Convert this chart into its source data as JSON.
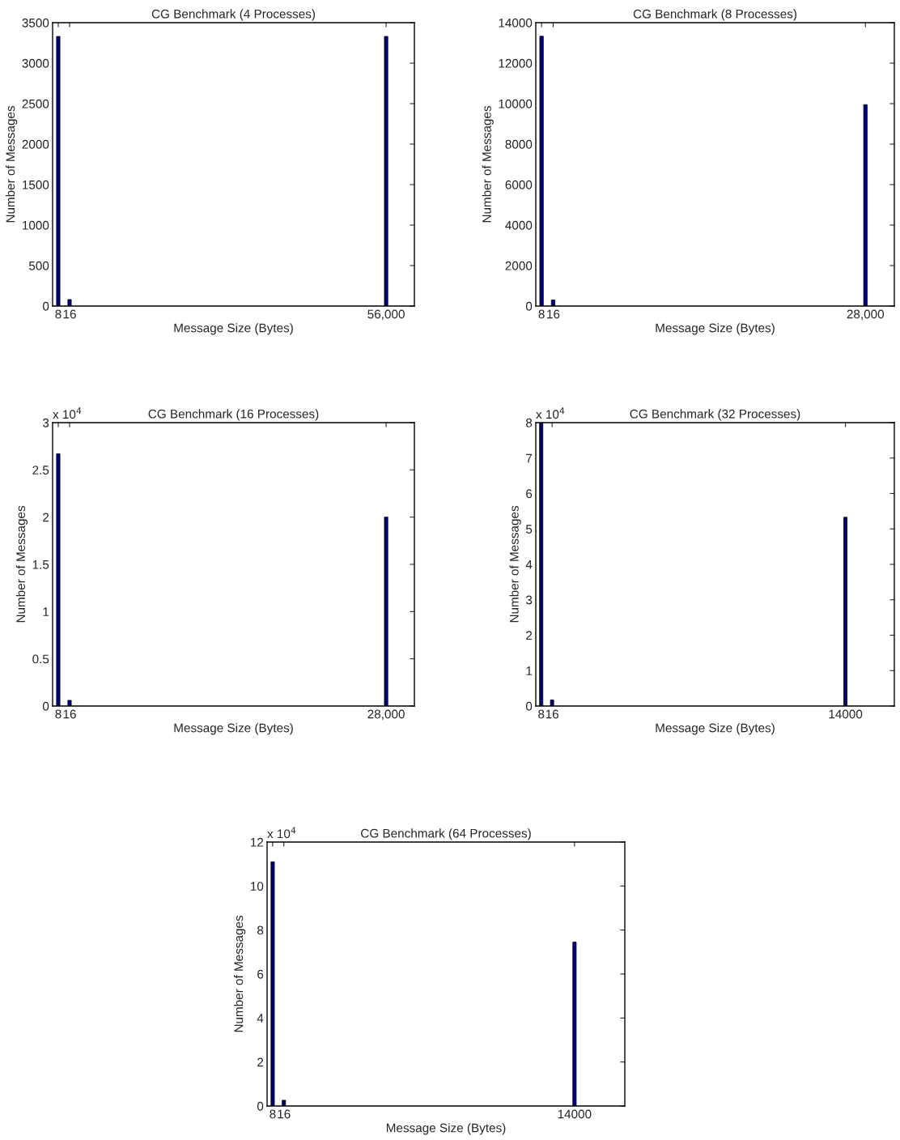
{
  "chart_data": [
    {
      "type": "bar",
      "title": "CG Benchmark (4 Processes)",
      "xlabel": "Message Size (Bytes)",
      "ylabel": "Number of Messages",
      "categories": [
        "8",
        "16",
        null,
        null,
        null,
        null,
        null,
        null,
        null,
        null,
        null,
        null,
        null,
        null,
        null,
        null,
        null,
        null,
        null,
        null,
        null,
        null,
        null,
        null,
        null,
        null,
        null,
        null,
        null,
        "56,000",
        null,
        null
      ],
      "values": [
        3330,
        80,
        null,
        null,
        null,
        null,
        null,
        null,
        null,
        null,
        null,
        null,
        null,
        null,
        null,
        null,
        null,
        null,
        null,
        null,
        null,
        null,
        null,
        null,
        null,
        null,
        null,
        null,
        null,
        3330,
        null,
        null
      ],
      "color": "#00007f",
      "ylim": [
        0,
        3500
      ],
      "yticks": [
        0,
        500,
        1000,
        1500,
        2000,
        2500,
        3000,
        3500
      ]
    },
    {
      "type": "bar",
      "title": "CG Benchmark (8 Processes)",
      "xlabel": "Message Size (Bytes)",
      "ylabel": "Number of Messages",
      "categories": [
        "8",
        "16",
        null,
        null,
        null,
        null,
        null,
        null,
        null,
        null,
        null,
        null,
        null,
        null,
        null,
        null,
        null,
        null,
        null,
        null,
        null,
        null,
        null,
        null,
        null,
        null,
        null,
        null,
        "28,000",
        null,
        null
      ],
      "values": [
        13330,
        300,
        null,
        null,
        null,
        null,
        null,
        null,
        null,
        null,
        null,
        null,
        null,
        null,
        null,
        null,
        null,
        null,
        null,
        null,
        null,
        null,
        null,
        null,
        null,
        null,
        null,
        null,
        9950,
        null,
        null
      ],
      "color": "#00007f",
      "ylim": [
        0,
        14000
      ],
      "yticks": [
        0,
        2000,
        4000,
        6000,
        8000,
        10000,
        12000,
        14000
      ]
    },
    {
      "type": "bar",
      "title": "CG Benchmark (16 Processes)",
      "xlabel": "Message Size (Bytes)",
      "ylabel": "Number of Messages",
      "categories": [
        "8",
        "16",
        null,
        null,
        null,
        null,
        null,
        null,
        null,
        null,
        null,
        null,
        null,
        null,
        null,
        null,
        null,
        null,
        null,
        null,
        null,
        null,
        null,
        null,
        null,
        null,
        null,
        null,
        null,
        "28,000",
        null,
        null
      ],
      "values": [
        2.67,
        0.06,
        null,
        null,
        null,
        null,
        null,
        null,
        null,
        null,
        null,
        null,
        null,
        null,
        null,
        null,
        null,
        null,
        null,
        null,
        null,
        null,
        null,
        null,
        null,
        null,
        null,
        null,
        null,
        2.0,
        null,
        null
      ],
      "color": "#00007f",
      "ylim": [
        0,
        3
      ],
      "yticks": [
        0,
        0.5,
        1,
        1.5,
        2,
        2.5,
        3
      ],
      "annotations": [
        "x 10$^{4}$"
      ]
    },
    {
      "type": "bar",
      "title": "CG Benchmark (32 Processes)",
      "xlabel": "Message Size (Bytes)",
      "ylabel": "Number of Messages",
      "categories": [
        "8",
        "16",
        null,
        null,
        null,
        null,
        null,
        null,
        null,
        null,
        null,
        null,
        null,
        null,
        null,
        null,
        null,
        null,
        null,
        null,
        null,
        null,
        null,
        null,
        null,
        null,
        null,
        null,
        "14000",
        null,
        null,
        null,
        null
      ],
      "values": [
        8,
        0.17,
        null,
        null,
        null,
        null,
        null,
        null,
        null,
        null,
        null,
        null,
        null,
        null,
        null,
        null,
        null,
        null,
        null,
        null,
        null,
        null,
        null,
        null,
        null,
        null,
        null,
        null,
        5.33,
        null,
        null,
        null,
        null
      ],
      "color": "#00007f",
      "ylim": [
        0,
        8
      ],
      "yticks": [
        0,
        1,
        2,
        3,
        4,
        5,
        6,
        7,
        8
      ],
      "annotations": [
        "x 10$^{4}$"
      ]
    },
    {
      "type": "bar",
      "title": "CG Benchmark (64 Processes)",
      "xlabel": "Message Size (Bytes)",
      "ylabel": "Number of Messages",
      "categories": [
        "8",
        "16",
        null,
        null,
        null,
        null,
        null,
        null,
        null,
        null,
        null,
        null,
        null,
        null,
        null,
        null,
        null,
        null,
        null,
        null,
        null,
        null,
        null,
        null,
        null,
        null,
        null,
        "14000",
        null,
        null,
        null,
        null
      ],
      "values": [
        11.1,
        0.26,
        null,
        null,
        null,
        null,
        null,
        null,
        null,
        null,
        null,
        null,
        null,
        null,
        null,
        null,
        null,
        null,
        null,
        null,
        null,
        null,
        null,
        null,
        null,
        null,
        null,
        7.45,
        null,
        null,
        null,
        null
      ],
      "color": "#00007f",
      "ylim": [
        0,
        12
      ],
      "yticks": [
        0,
        2,
        4,
        6,
        8,
        10,
        12
      ],
      "annotations": [
        "x 10$^{4}$"
      ]
    }
  ]
}
